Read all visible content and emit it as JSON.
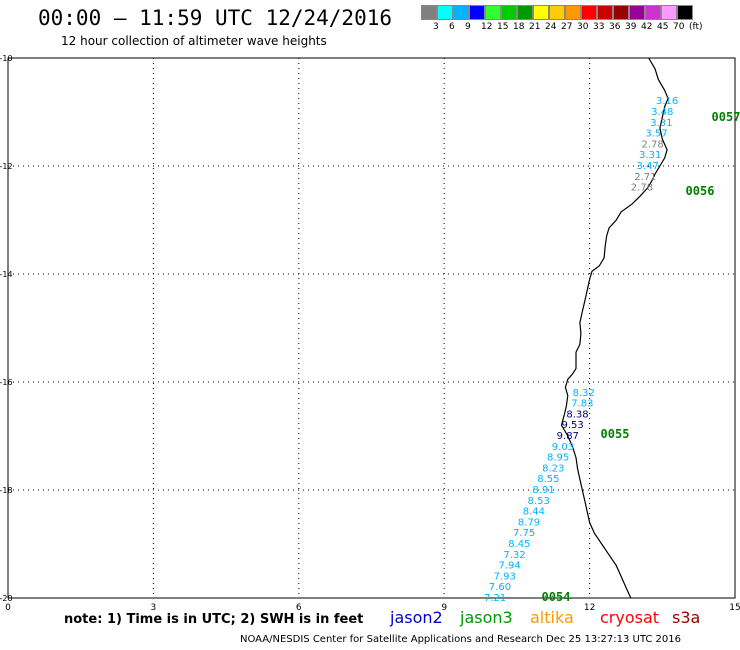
{
  "header": {
    "title": "00:00 – 11:59 UTC 12/24/2016",
    "subtitle": "12 hour collection of altimeter wave heights"
  },
  "legend": {
    "swatches": [
      {
        "color": "#808080",
        "label": "3"
      },
      {
        "color": "#00ffff",
        "label": "6"
      },
      {
        "color": "#00b4ff",
        "label": "9"
      },
      {
        "color": "#0000ff",
        "label": "12"
      },
      {
        "color": "#30ff30",
        "label": "15"
      },
      {
        "color": "#00cc00",
        "label": "18"
      },
      {
        "color": "#009900",
        "label": "21"
      },
      {
        "color": "#ffff00",
        "label": "24"
      },
      {
        "color": "#ffcc00",
        "label": "27"
      },
      {
        "color": "#ff9900",
        "label": "30"
      },
      {
        "color": "#ff0000",
        "label": "33"
      },
      {
        "color": "#cc0000",
        "label": "36"
      },
      {
        "color": "#990000",
        "label": "39"
      },
      {
        "color": "#990099",
        "label": "42"
      },
      {
        "color": "#cc33cc",
        "label": "45"
      },
      {
        "color": "#ff99ff",
        "label": "70"
      },
      {
        "color": "#000000",
        "label": "(ft)"
      }
    ]
  },
  "map": {
    "lat_range": [
      -20,
      -10
    ],
    "lon_range": [
      0,
      15
    ],
    "lat_ticks": [
      "-10",
      "-12",
      "-14",
      "-16",
      "-18",
      "-20"
    ],
    "lon_ticks": [
      "0",
      "3",
      "6",
      "9",
      "12",
      "15"
    ],
    "coast_color": "#000000",
    "passes": [
      {
        "id": "0057",
        "color": "#008000",
        "points": [
          {
            "lat": -10.8,
            "lon": 13.6,
            "swh": "3.16",
            "color": "#00b4ff"
          },
          {
            "lat": -11.0,
            "lon": 13.5,
            "swh": "3.48",
            "color": "#00b4ff"
          },
          {
            "lat": -11.2,
            "lon": 13.48,
            "swh": "3.31",
            "color": "#00b4ff"
          },
          {
            "lat": -11.4,
            "lon": 13.38,
            "swh": "3.57",
            "color": "#00b4ff"
          },
          {
            "lat": -11.6,
            "lon": 13.3,
            "swh": "2.78",
            "color": "#808080"
          },
          {
            "lat": -11.8,
            "lon": 13.25,
            "swh": "3.31",
            "color": "#00b4ff"
          },
          {
            "lat": -12.0,
            "lon": 13.2,
            "swh": "3.47",
            "color": "#00b4ff"
          },
          {
            "lat": -12.2,
            "lon": 13.15,
            "swh": "2.71",
            "color": "#808080"
          },
          {
            "lat": -12.4,
            "lon": 13.08,
            "swh": "2.78",
            "color": "#808080"
          }
        ]
      },
      {
        "id": "0056",
        "color": "#008000",
        "points": []
      },
      {
        "id": "0055",
        "color": "#008000",
        "points": [
          {
            "lat": -16.2,
            "lon": 11.88,
            "swh": "8.32",
            "color": "#00b4ff"
          },
          {
            "lat": -16.4,
            "lon": 11.85,
            "swh": "7.83",
            "color": "#00b4ff"
          },
          {
            "lat": -16.6,
            "lon": 11.75,
            "swh": "8.38",
            "color": "#000080"
          },
          {
            "lat": -16.8,
            "lon": 11.65,
            "swh": "9.53",
            "color": "#000080"
          },
          {
            "lat": -17.0,
            "lon": 11.55,
            "swh": "9.87",
            "color": "#000080"
          },
          {
            "lat": -17.2,
            "lon": 11.45,
            "swh": "9.03",
            "color": "#00b4ff"
          },
          {
            "lat": -17.4,
            "lon": 11.35,
            "swh": "8.95",
            "color": "#00b4ff"
          },
          {
            "lat": -17.6,
            "lon": 11.25,
            "swh": "8.23",
            "color": "#00b4ff"
          },
          {
            "lat": -17.8,
            "lon": 11.15,
            "swh": "8.55",
            "color": "#00b4ff"
          },
          {
            "lat": -18.0,
            "lon": 11.05,
            "swh": "8.91",
            "color": "#00b4ff"
          },
          {
            "lat": -18.2,
            "lon": 10.95,
            "swh": "8.53",
            "color": "#00b4ff"
          },
          {
            "lat": -18.4,
            "lon": 10.85,
            "swh": "8.44",
            "color": "#00b4ff"
          },
          {
            "lat": -18.6,
            "lon": 10.75,
            "swh": "8.79",
            "color": "#00b4ff"
          },
          {
            "lat": -18.8,
            "lon": 10.65,
            "swh": "7.75",
            "color": "#00b4ff"
          },
          {
            "lat": -19.0,
            "lon": 10.55,
            "swh": "8.45",
            "color": "#00b4ff"
          },
          {
            "lat": -19.2,
            "lon": 10.45,
            "swh": "7.32",
            "color": "#00b4ff"
          },
          {
            "lat": -19.4,
            "lon": 10.35,
            "swh": "7.94",
            "color": "#00b4ff"
          },
          {
            "lat": -19.6,
            "lon": 10.25,
            "swh": "7.93",
            "color": "#00b4ff"
          },
          {
            "lat": -19.8,
            "lon": 10.15,
            "swh": "7.60",
            "color": "#00b4ff"
          },
          {
            "lat": -20.0,
            "lon": 10.05,
            "swh": "7.21",
            "color": "#00b4ff"
          }
        ]
      },
      {
        "id": "0054",
        "color": "#008000",
        "points": []
      }
    ]
  },
  "note": "note: 1) Time is in UTC; 2) SWH is in feet",
  "satellites": [
    {
      "name": "jason2",
      "color": "#0000cc"
    },
    {
      "name": "jason3",
      "color": "#009900"
    },
    {
      "name": "altika",
      "color": "#ff9900"
    },
    {
      "name": "cryosat",
      "color": "#ff0000"
    },
    {
      "name": "s3a",
      "color": "#990000"
    }
  ],
  "footer": "NOAA/NESDIS Center for Satellite Applications and Research     Dec 25 13:27:13 UTC 2016"
}
